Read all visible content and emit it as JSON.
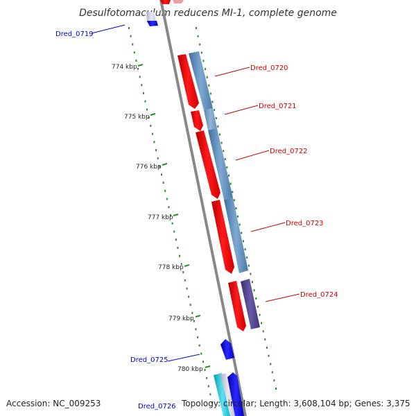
{
  "title": "Desulfotomaculum reducens MI-1, complete genome",
  "accession": "Accession: NC_009253",
  "summary": "Topology: circular; Length: 3,608,104 bp; Genes: 3,375",
  "colors": {
    "forward_cds": "#ff0000",
    "reverse_cds": "#0000ff",
    "label_top": "#cc0000",
    "label_bottom": "#0000cc",
    "tick": "#2a8a2a",
    "backbone": "#888888"
  },
  "scale_ticks": [
    "774 kbp",
    "775 kbp",
    "776 kbp",
    "777 kbp",
    "778 kbp",
    "779 kbp",
    "780 kbp"
  ],
  "labels": [
    {
      "text": "Dred_0719",
      "side": "left",
      "strand": "reverse"
    },
    {
      "text": "Dred_0720",
      "side": "right",
      "strand": "forward"
    },
    {
      "text": "Dred_0721",
      "side": "right",
      "strand": "forward"
    },
    {
      "text": "Dred_0722",
      "side": "right",
      "strand": "forward"
    },
    {
      "text": "Dred_0723",
      "side": "right",
      "strand": "forward"
    },
    {
      "text": "Dred_0724",
      "side": "right",
      "strand": "forward"
    },
    {
      "text": "Dred_0725",
      "side": "left",
      "strand": "reverse"
    },
    {
      "text": "Dred_0726",
      "side": "left",
      "strand": "reverse"
    }
  ]
}
